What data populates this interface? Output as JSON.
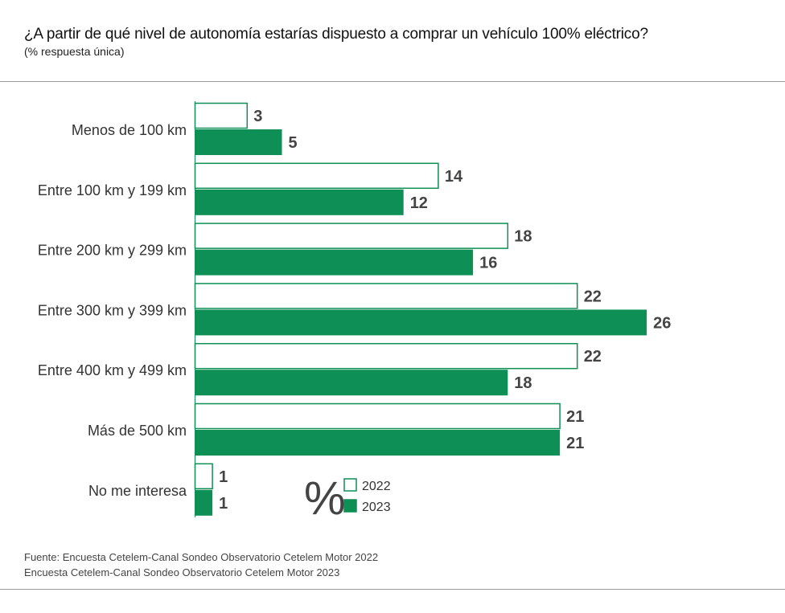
{
  "title": "¿A partir de qué nivel de autonomía estarías dispuesto a comprar un vehículo 100% eléctrico?",
  "subtitle": "(% respuesta única)",
  "source_line1": "Fuente: Encuesta Cetelem-Canal Sondeo Observatorio Cetelem Motor 2022",
  "source_line2": "Encuesta Cetelem-Canal Sondeo Observatorio Cetelem Motor 2023",
  "legend": {
    "unit_symbol": "%"
  },
  "colors": {
    "series_2023": "#0d8f55",
    "series_2022_stroke": "#0d8f55",
    "series_2022_fill": "#ffffff"
  },
  "chart_data": {
    "type": "bar",
    "orientation": "horizontal",
    "categories": [
      "Menos de 100 km",
      "Entre 100 km y 199 km",
      "Entre 200 km y 299 km",
      "Entre 300 km y 399 km",
      "Entre 400 km y 499 km",
      "Más de 500 km",
      "No me interesa"
    ],
    "series": [
      {
        "name": "2022",
        "values": [
          3,
          14,
          18,
          22,
          22,
          21,
          1
        ]
      },
      {
        "name": "2023",
        "values": [
          5,
          12,
          16,
          26,
          18,
          21,
          1
        ]
      }
    ],
    "xlim": [
      0,
      26
    ],
    "grid": false,
    "legend_position": "bottom-center"
  }
}
